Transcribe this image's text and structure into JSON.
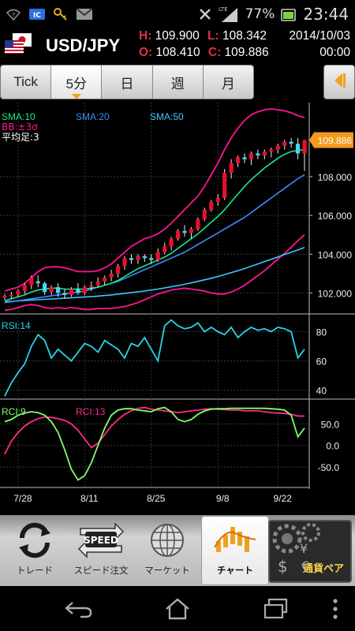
{
  "status_bar": {
    "icons": [
      "wifi-question-icon",
      "ic-card-icon",
      "key-icon",
      "gmail-icon",
      "vibrate-icon",
      "lte-signal-icon",
      "battery-icon"
    ],
    "network": "LTE",
    "battery": "77%",
    "time": "23:44"
  },
  "quote": {
    "flag": "us-jp-flag-icon",
    "pair": "USD/JPY",
    "high_key": "H:",
    "high": "109.900",
    "low_key": "L:",
    "low": "108.342",
    "open_key": "O:",
    "open": "108.410",
    "close_key": "C:",
    "close": "109.886",
    "date": "2014/10/03",
    "time": "00:00"
  },
  "tabs": [
    {
      "label": "Tick",
      "selected": false
    },
    {
      "label": "5分",
      "selected": true
    },
    {
      "label": "日",
      "selected": false
    },
    {
      "label": "週",
      "selected": false
    },
    {
      "label": "月",
      "selected": false
    }
  ],
  "back_button": "back-arrow-icon",
  "colors": {
    "sma10": "#19e68c",
    "sma20": "#3c8cff",
    "sma50": "#3cc8ff",
    "bb": "#ff1493",
    "rsi": "#2ad4e6",
    "rci9": "#7fff6a",
    "rci13": "#ff2b8a",
    "candle_up": "#e8102a",
    "price_tag": "#f29a1a"
  },
  "chart_data": [
    {
      "type": "candlestick",
      "legend": {
        "sma10": "SMA:10",
        "sma20": "SMA:20",
        "sma50": "SMA:50",
        "bb": "BB:±3σ",
        "candle": "平均足:3"
      },
      "last_price": "109.886",
      "y_ticks": [
        "108.000",
        "106.000",
        "104.000",
        "102.000"
      ],
      "ylim": [
        101.0,
        111.5
      ],
      "x_ticks": [
        "7/28",
        "8/11",
        "8/25",
        "9/8",
        "9/22"
      ],
      "candles": [
        [
          101.75,
          101.95,
          101.65,
          101.85
        ],
        [
          101.85,
          102.05,
          101.7,
          101.9
        ],
        [
          101.9,
          102.2,
          101.8,
          102.1
        ],
        [
          102.1,
          102.5,
          101.95,
          102.4
        ],
        [
          102.4,
          102.9,
          102.2,
          102.8
        ],
        [
          102.6,
          102.9,
          102.3,
          102.5
        ],
        [
          102.5,
          102.6,
          101.9,
          102.05
        ],
        [
          102.05,
          102.4,
          101.9,
          102.3
        ],
        [
          102.3,
          102.5,
          101.8,
          102.0
        ],
        [
          102.0,
          102.2,
          101.7,
          101.9
        ],
        [
          101.9,
          102.3,
          101.8,
          102.2
        ],
        [
          102.2,
          102.5,
          101.9,
          102.0
        ],
        [
          102.0,
          102.4,
          101.9,
          102.3
        ],
        [
          102.3,
          102.6,
          102.1,
          102.4
        ],
        [
          102.4,
          102.8,
          102.3,
          102.6
        ],
        [
          102.6,
          102.9,
          102.4,
          102.8
        ],
        [
          102.8,
          103.2,
          102.6,
          103.0
        ],
        [
          103.0,
          103.5,
          102.8,
          103.4
        ],
        [
          103.4,
          103.9,
          103.2,
          103.8
        ],
        [
          103.8,
          104.0,
          103.5,
          103.7
        ],
        [
          103.7,
          104.0,
          103.5,
          103.9
        ],
        [
          103.9,
          104.0,
          103.6,
          103.8
        ],
        [
          103.8,
          104.0,
          103.5,
          103.7
        ],
        [
          103.7,
          104.3,
          103.6,
          104.1
        ],
        [
          104.1,
          104.6,
          104.0,
          104.4
        ],
        [
          104.4,
          104.9,
          104.2,
          104.8
        ],
        [
          104.8,
          105.3,
          104.7,
          105.2
        ],
        [
          105.2,
          105.5,
          104.9,
          105.1
        ],
        [
          105.1,
          105.4,
          104.8,
          105.3
        ],
        [
          105.3,
          105.9,
          105.2,
          105.8
        ],
        [
          105.8,
          106.4,
          105.7,
          106.3
        ],
        [
          106.3,
          106.8,
          106.2,
          106.7
        ],
        [
          106.7,
          107.1,
          106.5,
          106.9
        ],
        [
          106.9,
          108.4,
          106.8,
          108.2
        ],
        [
          108.2,
          108.9,
          107.9,
          108.7
        ],
        [
          108.7,
          109.1,
          108.5,
          109.0
        ],
        [
          109.0,
          109.2,
          108.7,
          108.9
        ],
        [
          108.9,
          109.3,
          108.6,
          109.2
        ],
        [
          109.2,
          109.4,
          108.9,
          109.1
        ],
        [
          109.1,
          109.4,
          108.9,
          109.3
        ],
        [
          109.3,
          109.5,
          109.0,
          109.4
        ],
        [
          109.4,
          109.7,
          109.2,
          109.6
        ],
        [
          109.6,
          109.9,
          109.4,
          109.8
        ],
        [
          109.8,
          110.0,
          109.5,
          109.7
        ],
        [
          109.7,
          110.0,
          108.9,
          109.2
        ],
        [
          109.2,
          109.9,
          108.3,
          109.886
        ]
      ],
      "sma10": [
        101.6,
        101.7,
        101.8,
        101.9,
        102.05,
        102.15,
        102.2,
        102.25,
        102.25,
        102.2,
        102.2,
        102.2,
        102.2,
        102.25,
        102.3,
        102.4,
        102.5,
        102.65,
        102.85,
        103.05,
        103.25,
        103.4,
        103.55,
        103.7,
        103.85,
        104.05,
        104.3,
        104.55,
        104.8,
        105.05,
        105.35,
        105.65,
        105.95,
        106.3,
        106.7,
        107.1,
        107.5,
        107.85,
        108.15,
        108.45,
        108.7,
        108.95,
        109.15,
        109.3,
        109.35,
        109.4
      ],
      "sma20": [
        101.5,
        101.55,
        101.6,
        101.65,
        101.7,
        101.75,
        101.8,
        101.85,
        101.9,
        101.95,
        102.0,
        102.05,
        102.1,
        102.2,
        102.3,
        102.4,
        102.5,
        102.6,
        102.75,
        102.9,
        103.05,
        103.2,
        103.35,
        103.5,
        103.65,
        103.8,
        103.95,
        104.1,
        104.3,
        104.5,
        104.7,
        104.9,
        105.1,
        105.3,
        105.5,
        105.7,
        105.9,
        106.15,
        106.4,
        106.65,
        106.9,
        107.15,
        107.4,
        107.65,
        107.9,
        108.1
      ],
      "sma50": [
        101.55,
        101.57,
        101.59,
        101.61,
        101.63,
        101.65,
        101.67,
        101.69,
        101.71,
        101.73,
        101.75,
        101.77,
        101.79,
        101.81,
        101.84,
        101.87,
        101.9,
        101.94,
        101.98,
        102.02,
        102.06,
        102.1,
        102.15,
        102.2,
        102.26,
        102.32,
        102.38,
        102.45,
        102.52,
        102.6,
        102.68,
        102.76,
        102.85,
        102.95,
        103.05,
        103.15,
        103.26,
        103.38,
        103.5,
        103.62,
        103.74,
        103.86,
        103.98,
        104.1,
        104.22,
        104.35
      ],
      "bb_upper": [
        102.1,
        102.2,
        102.3,
        102.5,
        102.8,
        103.1,
        103.3,
        103.35,
        103.35,
        103.3,
        103.2,
        103.1,
        103.1,
        103.1,
        103.15,
        103.3,
        103.5,
        103.8,
        104.1,
        104.4,
        104.6,
        104.8,
        104.9,
        105.05,
        105.3,
        105.6,
        105.95,
        106.3,
        106.65,
        107.0,
        107.5,
        108.1,
        108.7,
        109.4,
        110.0,
        110.5,
        110.9,
        111.2,
        111.35,
        111.45,
        111.5,
        111.45,
        111.4,
        111.3,
        111.15,
        111.05
      ],
      "bb_lower": [
        101.1,
        101.15,
        101.25,
        101.35,
        101.4,
        101.35,
        101.25,
        101.2,
        101.25,
        101.2,
        101.25,
        101.2,
        101.15,
        101.15,
        101.2,
        101.2,
        101.2,
        101.25,
        101.3,
        101.4,
        101.5,
        101.65,
        101.8,
        101.95,
        102.05,
        102.15,
        102.2,
        102.25,
        102.2,
        102.15,
        102.1,
        102.0,
        101.95,
        101.95,
        102.05,
        102.2,
        102.4,
        102.65,
        102.9,
        103.15,
        103.45,
        103.75,
        104.05,
        104.35,
        104.7,
        105.0
      ]
    },
    {
      "type": "line",
      "legend": "RSI:14",
      "y_ticks": [
        "80",
        "60",
        "40"
      ],
      "ylim": [
        35,
        90
      ],
      "x_ticks": [
        "7/28",
        "8/11",
        "8/25",
        "9/8",
        "9/22"
      ],
      "values": [
        36,
        45,
        52,
        58,
        70,
        78,
        74,
        62,
        68,
        64,
        60,
        66,
        72,
        70,
        66,
        74,
        71,
        68,
        62,
        72,
        70,
        76,
        68,
        60,
        84,
        88,
        84,
        82,
        83,
        86,
        80,
        83,
        80,
        78,
        83,
        76,
        80,
        83,
        81,
        82,
        80,
        83,
        82,
        80,
        62,
        68
      ]
    },
    {
      "type": "line",
      "legend": [
        "RCI:9",
        "RCI:13"
      ],
      "y_ticks": [
        "50.0",
        "0.0",
        "-50.0"
      ],
      "ylim": [
        -90,
        100
      ],
      "x_ticks": [
        "7/28",
        "8/11",
        "8/25",
        "9/8",
        "9/22"
      ],
      "series": [
        {
          "name": "RCI:9",
          "values": [
            55,
            60,
            70,
            75,
            78,
            76,
            70,
            55,
            30,
            -10,
            -55,
            -80,
            -70,
            -40,
            0,
            40,
            70,
            82,
            85,
            85,
            82,
            80,
            78,
            85,
            88,
            78,
            60,
            55,
            60,
            72,
            80,
            84,
            85,
            85,
            86,
            86,
            86,
            86,
            86,
            86,
            85,
            84,
            82,
            70,
            20,
            40
          ]
        },
        {
          "name": "RCI:13",
          "values": [
            -20,
            10,
            30,
            45,
            55,
            62,
            66,
            65,
            62,
            58,
            50,
            35,
            15,
            -5,
            5,
            25,
            45,
            60,
            72,
            80,
            86,
            88,
            84,
            82,
            80,
            78,
            76,
            78,
            80,
            82,
            84,
            85,
            84,
            83,
            82,
            82,
            80,
            80,
            80,
            78,
            76,
            75,
            74,
            72,
            68,
            68
          ]
        }
      ]
    }
  ],
  "toolbar": [
    {
      "label": "トレード",
      "icon": "trade-arrows-icon",
      "active": false
    },
    {
      "label": "スピード注文",
      "icon": "speed-order-icon",
      "icon_text": "SPEED",
      "active": false
    },
    {
      "label": "マーケット",
      "icon": "globe-icon",
      "active": false
    },
    {
      "label": "チャート",
      "icon": "chart-icon",
      "active": true
    },
    {
      "label": "通貨ペア",
      "icon": "currency-pair-icon",
      "active": false
    }
  ],
  "nav": [
    "back-icon",
    "home-icon",
    "recent-apps-icon",
    "more-icon"
  ]
}
